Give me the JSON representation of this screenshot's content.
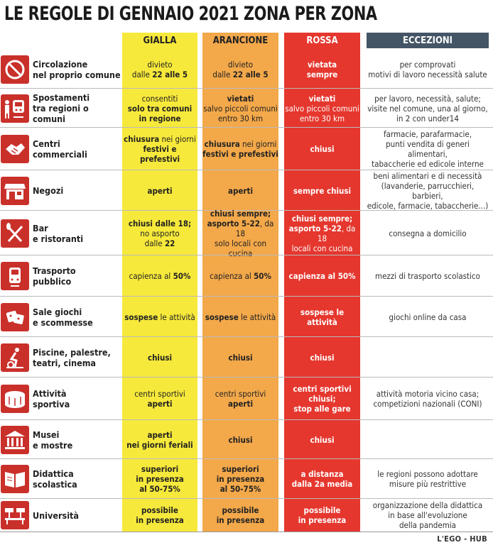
{
  "title": "LE REGOLE DI GENNAIO 2021 ZONA PER ZONA",
  "headers": {
    "gialla": "GIALLA",
    "arancione": "ARANCIONE",
    "rossa": "ROSSA",
    "eccezioni": "ECCEZIONI"
  },
  "colors": {
    "gialla": "#f7e93b",
    "arancione": "#f3a84a",
    "rossa": "#e5372e",
    "eccezioni_header": "#445566",
    "icon": "#c9302a"
  },
  "rows": [
    {
      "icon": "no-entry-icon",
      "label": [
        "Circolazione",
        "nel proprio comune"
      ],
      "gialla": [
        [
          "divieto",
          ""
        ],
        [
          "dalle ",
          "22 alle 5"
        ]
      ],
      "arancione": [
        [
          "divieto",
          ""
        ],
        [
          "dalle ",
          "22 alle 5"
        ]
      ],
      "rossa": [
        [
          "",
          "vietata"
        ],
        [
          "",
          "sempre"
        ]
      ],
      "eccezioni": [
        "per comprovati",
        "motivi di lavoro necessità salute"
      ]
    },
    {
      "icon": "train-person-icon",
      "label": [
        "Spostamenti",
        "tra regioni o comuni"
      ],
      "gialla": [
        [
          "consentiti",
          ""
        ],
        [
          "",
          "solo tra comuni"
        ],
        [
          "",
          "in regione"
        ]
      ],
      "arancione": [
        [
          "",
          "vietati"
        ],
        [
          "salvo piccoli comuni",
          ""
        ],
        [
          "entro 30 km",
          ""
        ]
      ],
      "rossa": [
        [
          "",
          "vietati"
        ],
        [
          "salvo piccoli comuni",
          ""
        ],
        [
          "entro 30 km",
          ""
        ]
      ],
      "eccezioni": [
        "per lavoro, necessità, salute;",
        "visite nel comune, una al giorno,",
        "in 2 con under14"
      ]
    },
    {
      "icon": "handshake-icon",
      "label": [
        "Centri",
        "commerciali"
      ],
      "gialla": [
        [
          "",
          "chiusura",
          " nei giorni"
        ],
        [
          "",
          "festivi e prefestivi"
        ]
      ],
      "arancione": [
        [
          "",
          "chiusura",
          " nei giorni"
        ],
        [
          "",
          "festivi e prefestivi"
        ]
      ],
      "rossa": [
        [
          "",
          "chiusi"
        ]
      ],
      "eccezioni": [
        "farmacie, parafarmacie,",
        "punti vendita di generi alimentari,",
        "tabaccherie ed edicole interne"
      ]
    },
    {
      "icon": "shop-icon",
      "label": [
        "Negozi"
      ],
      "gialla": [
        [
          "",
          "aperti"
        ]
      ],
      "arancione": [
        [
          "",
          "aperti"
        ]
      ],
      "rossa": [
        [
          "",
          "sempre chiusi"
        ]
      ],
      "eccezioni": [
        "beni alimentari e di necessità",
        "(lavanderie, parrucchieri, barbieri,",
        "edicole, farmacie, tabaccherie...)"
      ]
    },
    {
      "icon": "cutlery-icon",
      "label": [
        "Bar",
        "e ristoranti"
      ],
      "gialla": [
        [
          "",
          "chiusi dalle 18;"
        ],
        [
          "no asporto",
          ""
        ],
        [
          "dalle ",
          "22"
        ]
      ],
      "arancione": [
        [
          "",
          "chiusi sempre;"
        ],
        [
          "",
          "asporto 5-22",
          ", da 18"
        ],
        [
          "solo locali con cucina",
          ""
        ]
      ],
      "rossa": [
        [
          "",
          "chiusi sempre;"
        ],
        [
          "",
          "asporto 5-22",
          ", da 18"
        ],
        [
          "locali con cucina",
          ""
        ]
      ],
      "eccezioni": [
        "consegna a domicilio"
      ]
    },
    {
      "icon": "tram-icon",
      "label": [
        "Trasporto",
        "pubblico"
      ],
      "gialla": [
        [
          "capienza al ",
          "50%"
        ]
      ],
      "arancione": [
        [
          "capienza al ",
          "50%"
        ]
      ],
      "rossa": [
        [
          "",
          "capienza al 50%"
        ]
      ],
      "eccezioni": [
        "mezzi di trasporto scolastico"
      ]
    },
    {
      "icon": "dice-icon",
      "label": [
        "Sale giochi",
        "e scommesse"
      ],
      "gialla": [
        [
          "",
          "sospese",
          " le attività"
        ]
      ],
      "arancione": [
        [
          "",
          "sospese",
          " le attività"
        ]
      ],
      "rossa": [
        [
          "",
          "sospese le attività"
        ]
      ],
      "eccezioni": [
        "giochi online da casa"
      ]
    },
    {
      "icon": "fitness-icon",
      "label": [
        "Piscine, palestre,",
        "teatri, cinema"
      ],
      "gialla": [
        [
          "",
          "chiusi"
        ]
      ],
      "arancione": [
        [
          "",
          "chiusi"
        ]
      ],
      "rossa": [
        [
          "",
          "chiusi"
        ]
      ],
      "eccezioni": []
    },
    {
      "icon": "stadium-icon",
      "label": [
        "Attività",
        "sportiva"
      ],
      "gialla": [
        [
          "centri sportivi",
          ""
        ],
        [
          "",
          "aperti"
        ]
      ],
      "arancione": [
        [
          "centri sportivi",
          ""
        ],
        [
          "",
          "aperti"
        ]
      ],
      "rossa": [
        [
          "",
          "centri sportivi"
        ],
        [
          "",
          "chiusi;"
        ],
        [
          "",
          "stop alle gare"
        ]
      ],
      "eccezioni": [
        "attività motoria vicino casa;",
        "competizioni nazionali (CONI)"
      ]
    },
    {
      "icon": "museum-icon",
      "label": [
        "Musei",
        "e mostre"
      ],
      "gialla": [
        [
          "",
          "aperti"
        ],
        [
          "",
          "nei giorni feriali"
        ]
      ],
      "arancione": [
        [
          "",
          "chiusi"
        ]
      ],
      "rossa": [
        [
          "",
          "chiusi"
        ]
      ],
      "eccezioni": []
    },
    {
      "icon": "book-icon",
      "label": [
        "Didattica",
        "scolastica"
      ],
      "gialla": [
        [
          "",
          "superiori"
        ],
        [
          "",
          "in presenza"
        ],
        [
          "",
          "al 50-75%"
        ]
      ],
      "arancione": [
        [
          "",
          "superiori"
        ],
        [
          "",
          "in presenza"
        ],
        [
          "",
          "al 50-75%"
        ]
      ],
      "rossa": [
        [
          "",
          "a distanza"
        ],
        [
          "",
          "dalla 2a media"
        ]
      ],
      "eccezioni": [
        "le regioni possono adottare",
        "misure più restrittive"
      ]
    },
    {
      "icon": "desks-icon",
      "label": [
        "Università"
      ],
      "gialla": [
        [
          "",
          "possibile"
        ],
        [
          "",
          "in presenza"
        ]
      ],
      "arancione": [
        [
          "",
          "possibile"
        ],
        [
          "",
          "in presenza"
        ]
      ],
      "rossa": [
        [
          "",
          "possibile"
        ],
        [
          "",
          "in presenza"
        ]
      ],
      "eccezioni": [
        "organizzazione della didattica",
        "in base all'evoluzione",
        "della pandemia"
      ]
    }
  ],
  "footer": "L'EGO - HUB"
}
